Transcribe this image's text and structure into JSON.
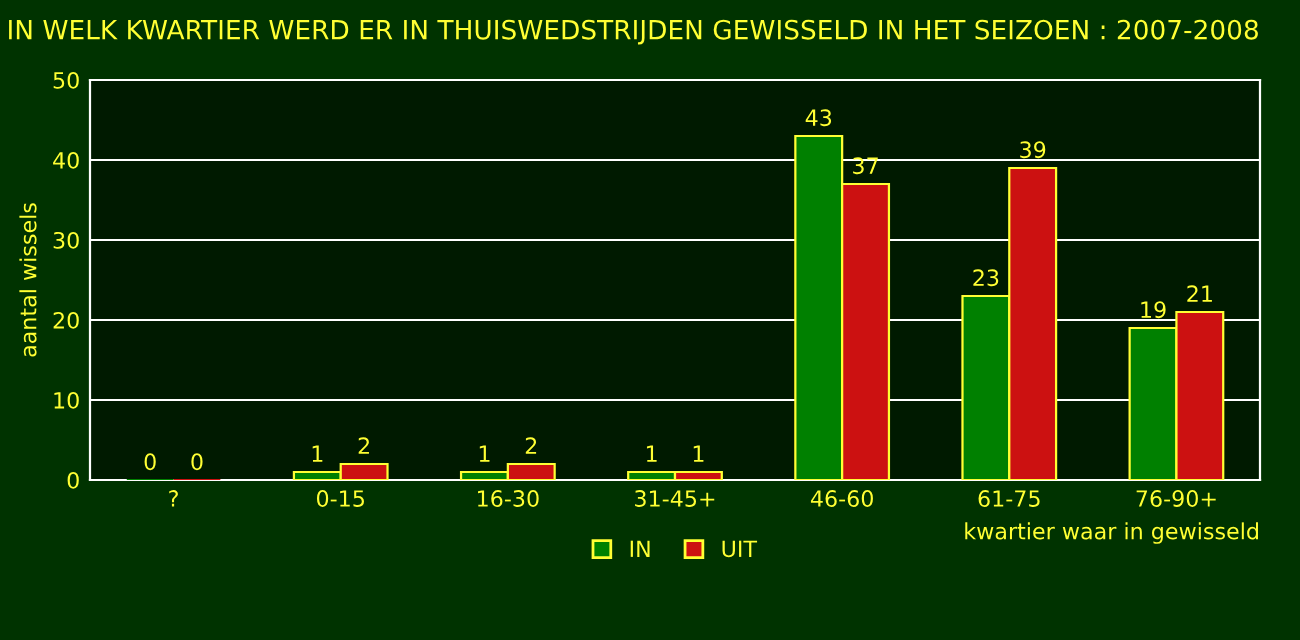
{
  "chart_data": {
    "type": "bar",
    "title": "IN WELK KWARTIER WERD ER IN THUISWEDSTRIJDEN GEWISSELD IN HET SEIZOEN : 2007-2008",
    "xlabel": "kwartier waar in gewisseld",
    "ylabel": "aantal wissels",
    "categories": [
      "?",
      "0-15",
      "16-30",
      "31-45+",
      "46-60",
      "61-75",
      "76-90+"
    ],
    "series": [
      {
        "name": "IN",
        "color": "#008000",
        "values": [
          0,
          1,
          1,
          1,
          43,
          23,
          19
        ]
      },
      {
        "name": "UIT",
        "color": "#cc1111",
        "values": [
          0,
          2,
          2,
          1,
          37,
          39,
          21
        ]
      }
    ],
    "ylim": [
      0,
      50
    ],
    "yticks": [
      0,
      10,
      20,
      30,
      40,
      50
    ],
    "grid": "y",
    "legend": "bottom",
    "data_labels": true
  }
}
